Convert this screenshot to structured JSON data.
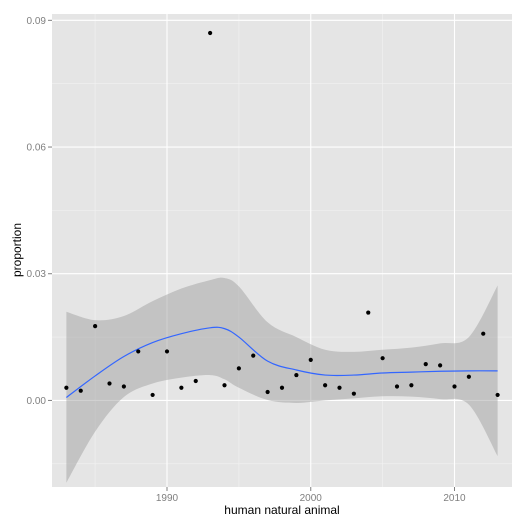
{
  "chart_data": {
    "type": "scatter",
    "title": "",
    "xlabel": "human natural animal",
    "ylabel": "proportion",
    "xlim": [
      1982,
      2014
    ],
    "ylim": [
      -0.0205,
      0.0915
    ],
    "grid": true,
    "legend": "none",
    "x_ticks": [
      {
        "value": 1990,
        "label": "1990"
      },
      {
        "value": 2000,
        "label": "2000"
      },
      {
        "value": 2010,
        "label": "2010"
      }
    ],
    "y_ticks": [
      {
        "value": 0.0,
        "label": "0.00"
      },
      {
        "value": 0.03,
        "label": "0.03"
      },
      {
        "value": 0.06,
        "label": "0.06"
      },
      {
        "value": 0.09,
        "label": "0.09"
      }
    ],
    "points": {
      "x": [
        1983,
        1984,
        1985,
        1986,
        1987,
        1988,
        1989,
        1990,
        1991,
        1992,
        1993,
        1994,
        1995,
        1996,
        1997,
        1998,
        1999,
        2000,
        2001,
        2002,
        2003,
        2004,
        2005,
        2006,
        2007,
        2008,
        2009,
        2010,
        2011,
        2012,
        2013
      ],
      "y": [
        0.003,
        0.0023,
        0.0176,
        0.004,
        0.0033,
        0.0116,
        0.0013,
        0.0116,
        0.003,
        0.0046,
        0.087,
        0.0036,
        0.0076,
        0.0106,
        0.002,
        0.003,
        0.006,
        0.0096,
        0.0036,
        0.003,
        0.0016,
        0.0208,
        0.01,
        0.0033,
        0.0036,
        0.0086,
        0.0083,
        0.0033,
        0.0056,
        0.0158,
        0.0013
      ]
    },
    "smooth": {
      "x": [
        1983,
        1985,
        1987,
        1989,
        1991,
        1993,
        1994,
        1995,
        1997,
        1999,
        2001,
        2003,
        2005,
        2007,
        2009,
        2011,
        2013
      ],
      "y": [
        0.0007,
        0.0058,
        0.0104,
        0.0137,
        0.0158,
        0.0172,
        0.017,
        0.015,
        0.0093,
        0.0072,
        0.006,
        0.006,
        0.0065,
        0.0067,
        0.0069,
        0.007,
        0.007
      ],
      "upper": [
        0.021,
        0.019,
        0.02,
        0.0235,
        0.0265,
        0.0285,
        0.029,
        0.027,
        0.0185,
        0.015,
        0.012,
        0.0115,
        0.012,
        0.0125,
        0.0135,
        0.015,
        0.0272
      ],
      "lower": [
        -0.0195,
        -0.0074,
        0.0008,
        0.004,
        0.0054,
        0.006,
        0.005,
        0.003,
        0.0001,
        -0.0006,
        0.0,
        0.0005,
        0.001,
        0.0009,
        0.0003,
        -0.001,
        -0.0132
      ]
    },
    "colors": {
      "panel": "#e5e5e5",
      "grid_major": "#ffffff",
      "grid_minor": "#f2f2f2",
      "point": "#000000",
      "line": "#3366ff",
      "ribbon": "#999999"
    }
  }
}
